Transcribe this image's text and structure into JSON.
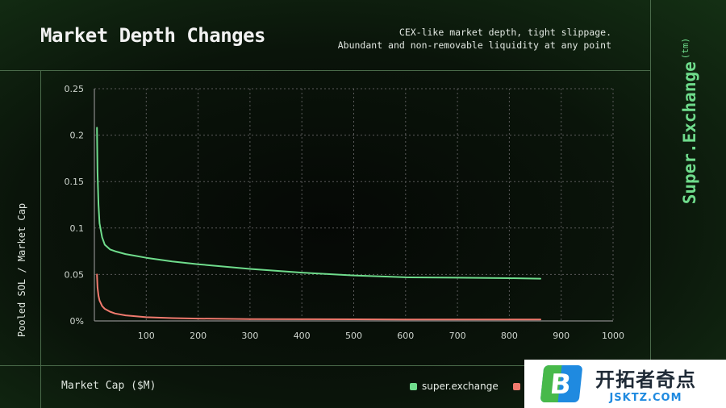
{
  "header": {
    "title": "Market Depth Changes",
    "subtitle_line1": "CEX-like market depth, tight slippage.",
    "subtitle_line2": "Abundant and non-removable liquidity at any point"
  },
  "brand": {
    "name": "Super.Exchange",
    "mark": "(tm)"
  },
  "watermark": {
    "text_cn": "开拓者奇点",
    "text_en": "JSKTZ.COM",
    "logo_letter": "B"
  },
  "colors": {
    "green": "#6fdc8c",
    "red": "#f07a6e",
    "grid": "#5a5a5a",
    "axis": "#8a8a8a"
  },
  "chart_data": {
    "type": "line",
    "xlabel": "Market Cap ($M)",
    "ylabel": "Pooled SOL / Market Cap",
    "xlim": [
      0,
      1000
    ],
    "ylim": [
      0,
      0.25
    ],
    "x_ticks": [
      100,
      200,
      300,
      400,
      500,
      600,
      700,
      800,
      900,
      1000
    ],
    "y_ticks": [
      {
        "value": 0,
        "label": "0%"
      },
      {
        "value": 0.05,
        "label": "0.05"
      },
      {
        "value": 0.1,
        "label": "0.1"
      },
      {
        "value": 0.15,
        "label": "0.15"
      },
      {
        "value": 0.2,
        "label": "0.2"
      },
      {
        "value": 0.25,
        "label": "0.25"
      }
    ],
    "grid": true,
    "legend_position": "bottom",
    "series": [
      {
        "name": "super.exchange",
        "color": "#6fdc8c",
        "x": [
          5,
          6,
          8,
          10,
          15,
          20,
          30,
          40,
          60,
          80,
          100,
          150,
          200,
          300,
          400,
          500,
          600,
          700,
          800,
          860
        ],
        "y": [
          0.208,
          0.16,
          0.125,
          0.105,
          0.09,
          0.082,
          0.077,
          0.075,
          0.072,
          0.07,
          0.068,
          0.064,
          0.061,
          0.056,
          0.052,
          0.049,
          0.047,
          0.0465,
          0.046,
          0.0455
        ]
      },
      {
        "name": "p",
        "color": "#f07a6e",
        "x": [
          5,
          6,
          8,
          10,
          15,
          20,
          30,
          40,
          60,
          80,
          100,
          150,
          200,
          300,
          400,
          500,
          600,
          700,
          800,
          860
        ],
        "y": [
          0.05,
          0.036,
          0.027,
          0.022,
          0.016,
          0.013,
          0.01,
          0.008,
          0.006,
          0.005,
          0.004,
          0.003,
          0.0025,
          0.002,
          0.0018,
          0.0017,
          0.0016,
          0.0016,
          0.0015,
          0.0015
        ]
      }
    ]
  }
}
